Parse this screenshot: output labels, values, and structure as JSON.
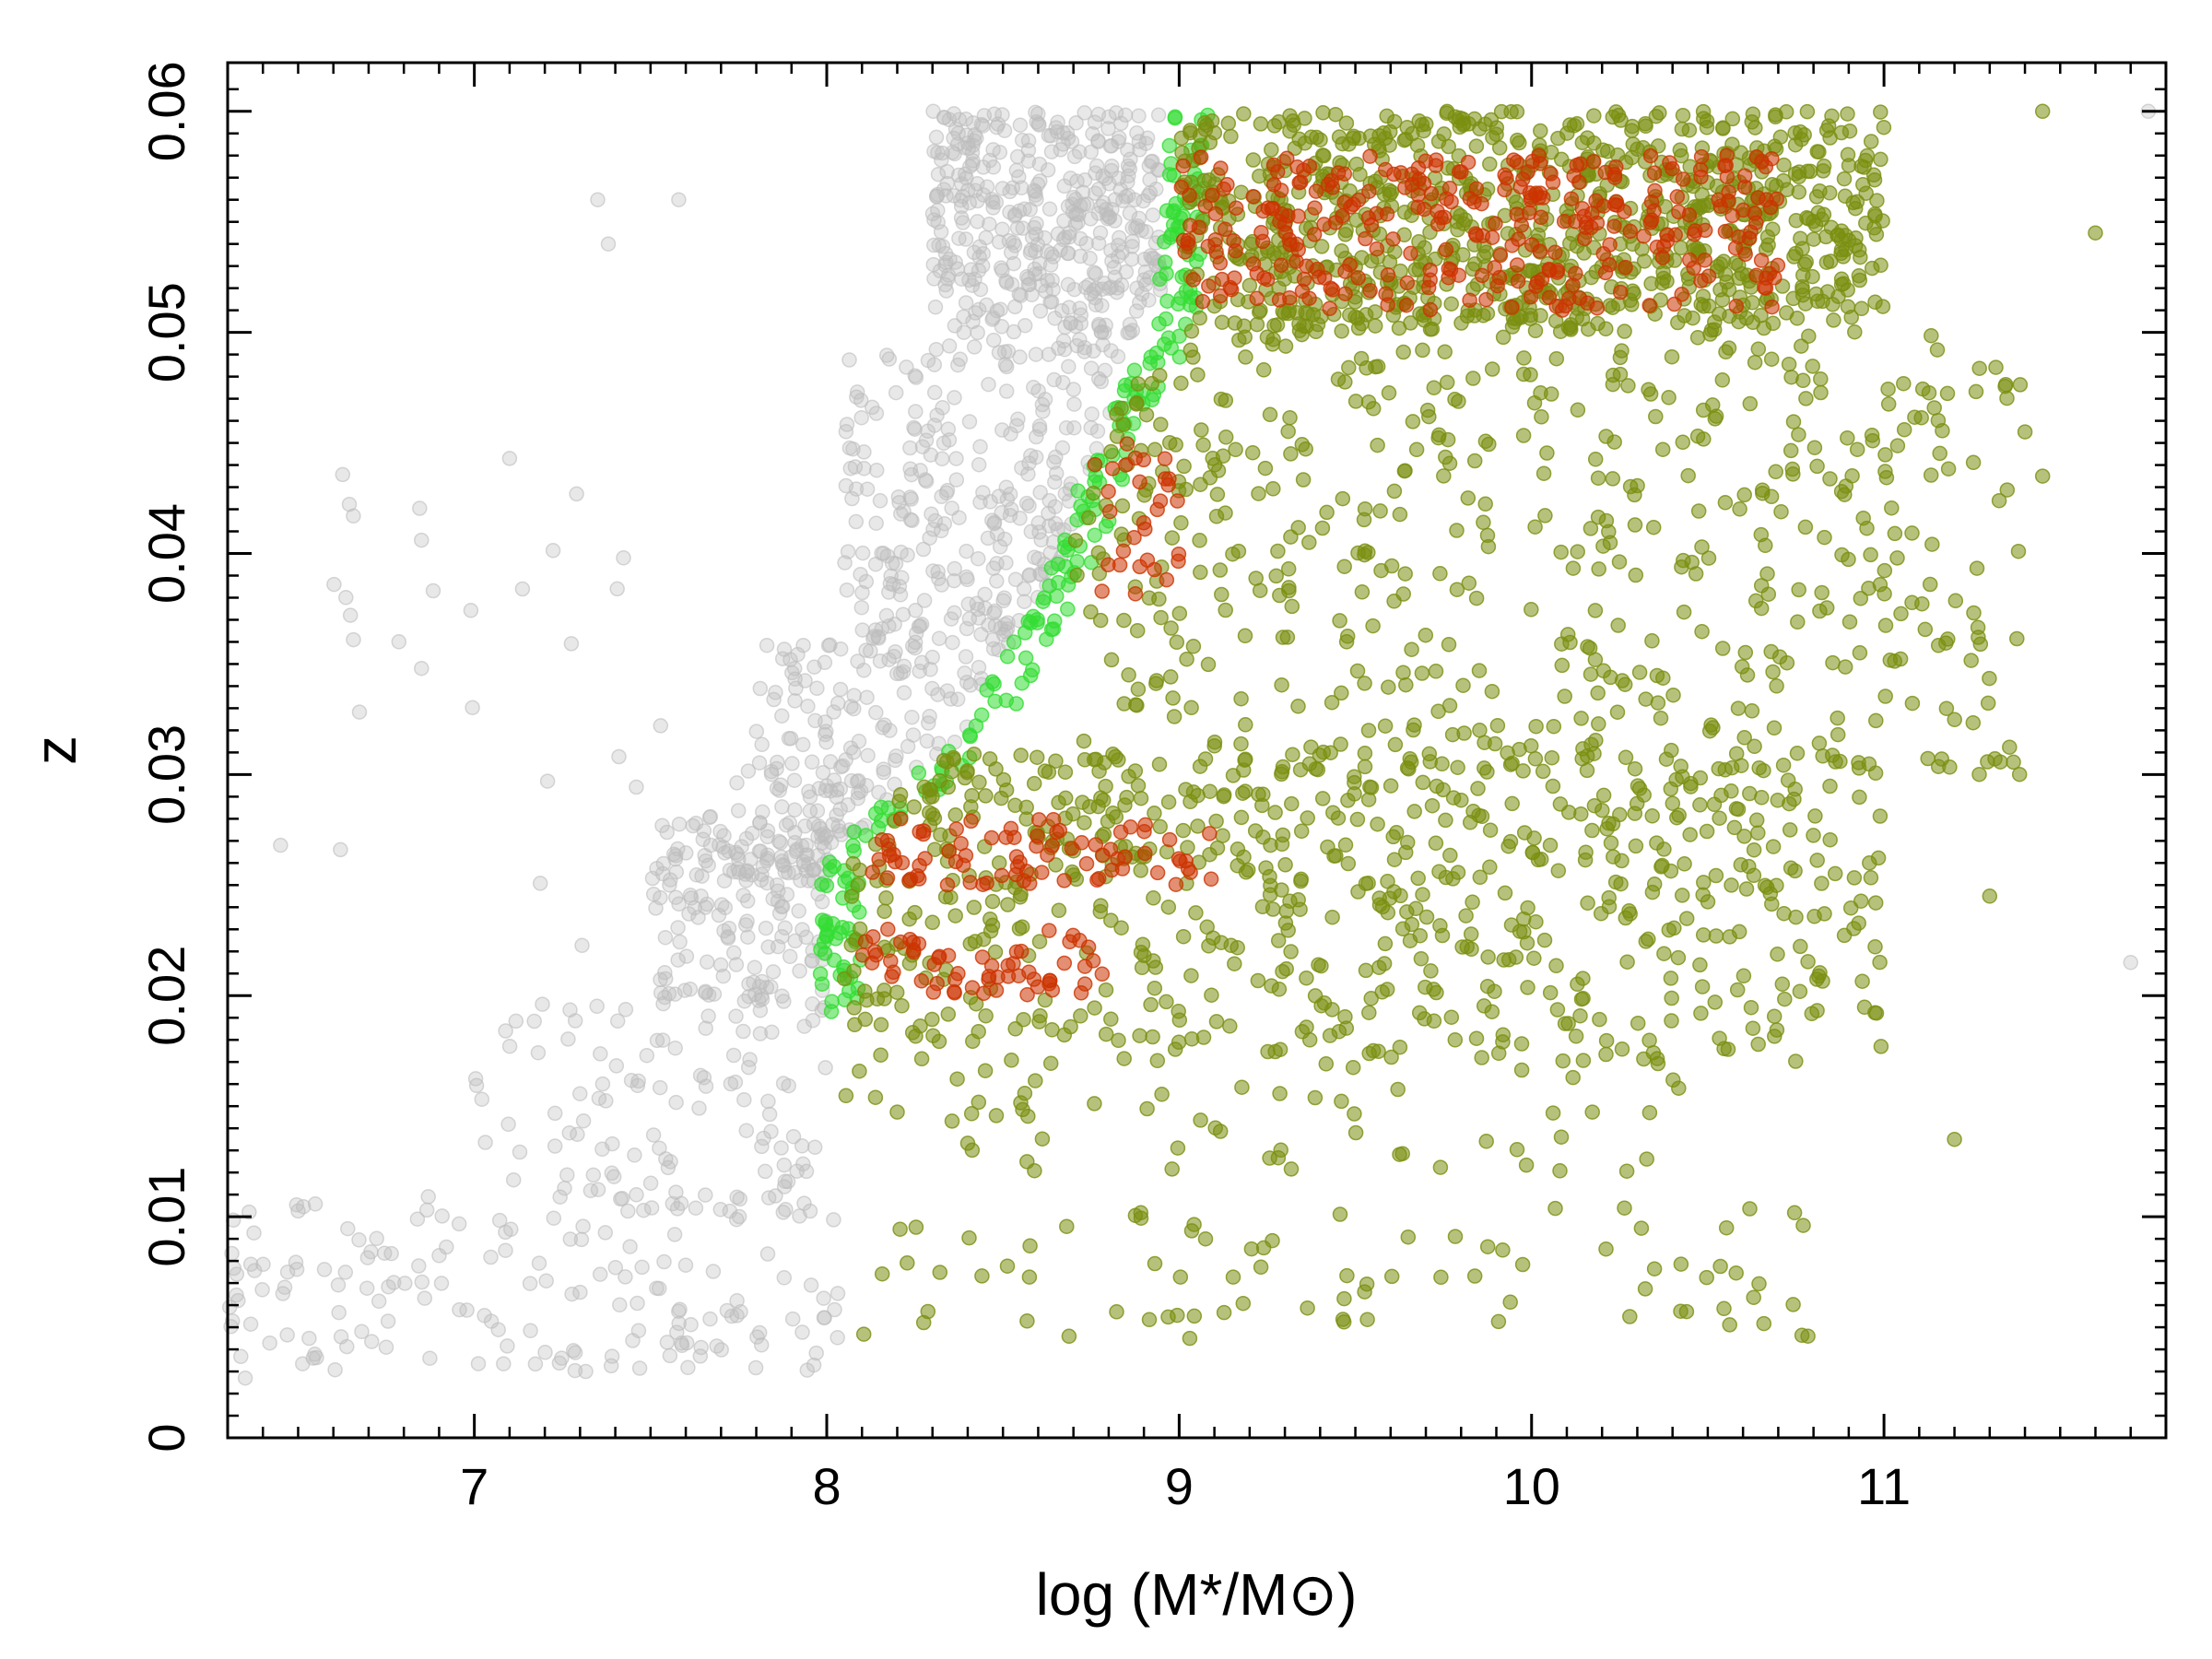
{
  "chart_data": {
    "type": "scatter",
    "title": "",
    "xlabel": "log (M*/M⊙)",
    "ylabel": "z",
    "xlim": [
      6.3,
      11.8
    ],
    "ylim": [
      0,
      0.0622
    ],
    "x_ticks": [
      7,
      8,
      9,
      10,
      11
    ],
    "x_tick_labels": [
      "7",
      "8",
      "9",
      "10",
      "11"
    ],
    "y_ticks": [
      0,
      0.01,
      0.02,
      0.03,
      0.04,
      0.05,
      0.06
    ],
    "y_tick_labels": [
      "0",
      "0.01",
      "0.02",
      "0.03",
      "0.04",
      "0.05",
      "0.06"
    ],
    "grid": false,
    "legend": "none",
    "series": [
      {
        "color": "#bdbdbd",
        "opacity": 0.35,
        "description_points": "grey background sample",
        "clusters": [
          {
            "x": [
              8.3,
              8.95
            ],
            "y": [
              0.049,
              0.06
            ],
            "n": 420
          },
          {
            "x": [
              8.05,
              8.85
            ],
            "y": [
              0.036,
              0.049
            ],
            "n": 260
          },
          {
            "x": [
              7.8,
              8.6
            ],
            "y": [
              0.025,
              0.036
            ],
            "n": 200
          },
          {
            "x": [
              7.5,
              8.3
            ],
            "y": [
              0.019,
              0.028
            ],
            "n": 160
          },
          {
            "x": [
              7.0,
              8.0
            ],
            "y": [
              0.01,
              0.02
            ],
            "n": 110
          },
          {
            "x": [
              6.3,
              8.05
            ],
            "y": [
              0.003,
              0.011
            ],
            "n": 170
          },
          {
            "x": [
              6.6,
              7.6
            ],
            "y": [
              0.02,
              0.045
            ],
            "n": 25
          }
        ],
        "points": [
          [
            6.35,
            0.0027
          ],
          [
            6.45,
            0.0268
          ],
          [
            6.62,
            0.0266
          ],
          [
            6.85,
            0.0406
          ],
          [
            6.85,
            0.0348
          ],
          [
            7.1,
            0.0443
          ],
          [
            7.35,
            0.056
          ],
          [
            7.38,
            0.054
          ],
          [
            7.58,
            0.056
          ],
          [
            11.7,
            0.0215
          ],
          [
            11.75,
            0.06
          ]
        ]
      },
      {
        "color": "#33dd33",
        "opacity": 0.55,
        "description_points": "green selection boundary",
        "boundary": [
          [
            8.0,
            0.019
          ],
          [
            8.0,
            0.026
          ],
          [
            8.4,
            0.032
          ],
          [
            8.65,
            0.039
          ],
          [
            8.8,
            0.046
          ],
          [
            8.95,
            0.05
          ],
          [
            9.0,
            0.06
          ]
        ],
        "n": 220
      },
      {
        "color": "#7a8f10",
        "opacity": 0.55,
        "description_points": "olive selected sample",
        "clusters": [
          {
            "x": [
              9.0,
              11.0
            ],
            "y": [
              0.05,
              0.06
            ],
            "n": 900
          },
          {
            "x": [
              8.7,
              11.4
            ],
            "y": [
              0.03,
              0.05
            ],
            "n": 520
          },
          {
            "x": [
              8.05,
              11.0
            ],
            "y": [
              0.025,
              0.031
            ],
            "n": 360
          },
          {
            "x": [
              8.05,
              11.0
            ],
            "y": [
              0.017,
              0.025
            ],
            "n": 330
          },
          {
            "x": [
              8.05,
              10.5
            ],
            "y": [
              0.012,
              0.017
            ],
            "n": 60
          },
          {
            "x": [
              8.05,
              10.8
            ],
            "y": [
              0.0045,
              0.0105
            ],
            "n": 80
          }
        ],
        "points": [
          [
            11.45,
            0.06
          ],
          [
            11.6,
            0.0545
          ],
          [
            11.45,
            0.0435
          ],
          [
            11.4,
            0.0455
          ],
          [
            11.2,
            0.0135
          ],
          [
            11.3,
            0.0245
          ],
          [
            9.03,
            0.0045
          ]
        ]
      },
      {
        "color": "#cc3300",
        "opacity": 0.55,
        "description_points": "red dense core",
        "clusters": [
          {
            "x": [
              9.0,
              10.7
            ],
            "y": [
              0.051,
              0.058
            ],
            "n": 320
          },
          {
            "x": [
              8.1,
              9.1
            ],
            "y": [
              0.025,
              0.028
            ],
            "n": 80
          },
          {
            "x": [
              8.1,
              8.8
            ],
            "y": [
              0.02,
              0.023
            ],
            "n": 60
          },
          {
            "x": [
              8.7,
              9.0
            ],
            "y": [
              0.038,
              0.045
            ],
            "n": 30
          }
        ]
      }
    ]
  }
}
